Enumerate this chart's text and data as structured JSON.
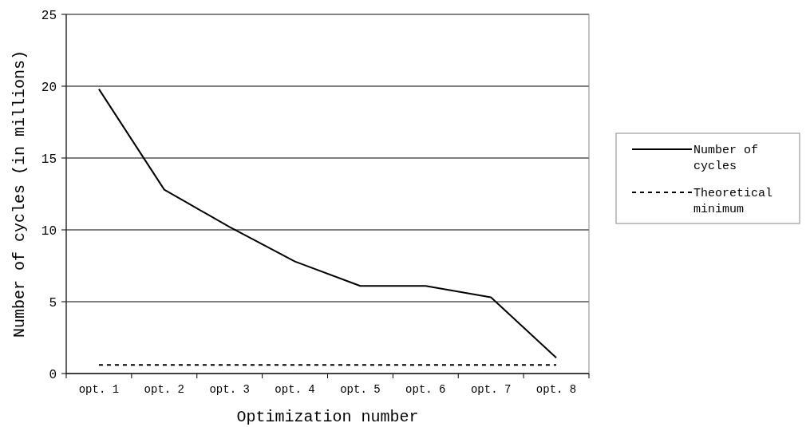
{
  "chart_data": {
    "type": "line",
    "xlabel": "Optimization number",
    "ylabel": "Number of cycles (in millions)",
    "categories": [
      "opt. 1",
      "opt. 2",
      "opt. 3",
      "opt. 4",
      "opt. 5",
      "opt. 6",
      "opt. 7",
      "opt. 8"
    ],
    "series": [
      {
        "name": "Number of cycles",
        "color": "#000000",
        "line_style": "solid",
        "values": [
          19.8,
          12.8,
          10.2,
          7.8,
          6.1,
          6.1,
          5.3,
          1.1
        ]
      },
      {
        "name": "Theoretical minimum",
        "color": "#000000",
        "line_style": "dotted",
        "values": [
          0.6,
          0.6,
          0.6,
          0.6,
          0.6,
          0.6,
          0.6,
          0.6
        ]
      }
    ],
    "ylim": [
      0,
      25
    ],
    "yticks": [
      0,
      5,
      10,
      15,
      20,
      25
    ],
    "grid": "y",
    "legend": "right"
  }
}
